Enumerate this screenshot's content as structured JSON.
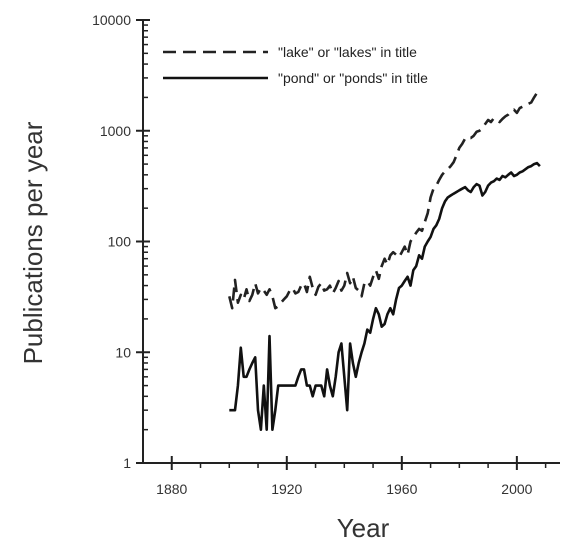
{
  "chart_data": {
    "type": "line",
    "xlabel": "Year",
    "ylabel": "Publications per year",
    "xlim": [
      1870,
      2015
    ],
    "ylim": [
      1,
      10000
    ],
    "yscale": "log",
    "x_ticks": [
      1880,
      1920,
      1960,
      2000
    ],
    "x_tick_labels": [
      "1880",
      "1920",
      "1960",
      "2000"
    ],
    "y_ticks": [
      1,
      10,
      100,
      1000,
      10000
    ],
    "y_tick_labels": [
      "1",
      "10",
      "100",
      "1000",
      "10000"
    ],
    "grid": false,
    "legend_position": "top-left",
    "series": [
      {
        "name": "\"lake\" or \"lakes\" in title",
        "style": "dashed",
        "color": "#222222",
        "x": [
          1900,
          1901,
          1902,
          1903,
          1904,
          1905,
          1906,
          1907,
          1908,
          1909,
          1910,
          1911,
          1912,
          1913,
          1914,
          1915,
          1916,
          1917,
          1918,
          1919,
          1920,
          1921,
          1922,
          1923,
          1924,
          1925,
          1926,
          1927,
          1928,
          1929,
          1930,
          1931,
          1932,
          1933,
          1934,
          1935,
          1936,
          1937,
          1938,
          1939,
          1940,
          1941,
          1942,
          1943,
          1944,
          1945,
          1946,
          1947,
          1948,
          1949,
          1950,
          1951,
          1952,
          1953,
          1954,
          1955,
          1956,
          1957,
          1958,
          1959,
          1960,
          1961,
          1962,
          1963,
          1964,
          1965,
          1966,
          1967,
          1968,
          1969,
          1970,
          1971,
          1972,
          1973,
          1974,
          1975,
          1976,
          1977,
          1978,
          1979,
          1980,
          1981,
          1982,
          1983,
          1984,
          1985,
          1986,
          1987,
          1988,
          1989,
          1990,
          1991,
          1992,
          1993,
          1994,
          1995,
          1996,
          1997,
          1998,
          1999,
          2000,
          2001,
          2002,
          2003,
          2004,
          2005,
          2006,
          2007
        ],
        "y": [
          32,
          25,
          45,
          28,
          33,
          30,
          37,
          29,
          33,
          42,
          34,
          38,
          36,
          33,
          37,
          32,
          25,
          26,
          28,
          30,
          32,
          36,
          38,
          34,
          35,
          40,
          42,
          35,
          48,
          38,
          33,
          39,
          42,
          36,
          37,
          40,
          34,
          38,
          44,
          36,
          40,
          52,
          42,
          48,
          38,
          36,
          32,
          42,
          44,
          40,
          48,
          55,
          46,
          60,
          70,
          62,
          75,
          80,
          76,
          72,
          80,
          90,
          76,
          100,
          110,
          120,
          130,
          125,
          150,
          180,
          250,
          300,
          320,
          360,
          400,
          430,
          450,
          480,
          520,
          600,
          700,
          760,
          850,
          880,
          860,
          900,
          980,
          1000,
          1050,
          1150,
          1250,
          1200,
          1300,
          1250,
          1200,
          1280,
          1350,
          1400,
          1500,
          1550,
          1450,
          1600,
          1650,
          1700,
          1750,
          1800,
          2000,
          2200
        ]
      },
      {
        "name": "\"pond\" or \"ponds\" in title",
        "style": "solid",
        "color": "#111111",
        "x": [
          1900,
          1901,
          1902,
          1903,
          1904,
          1905,
          1906,
          1907,
          1908,
          1909,
          1910,
          1911,
          1912,
          1913,
          1914,
          1915,
          1916,
          1917,
          1918,
          1919,
          1920,
          1921,
          1922,
          1923,
          1924,
          1925,
          1926,
          1927,
          1928,
          1929,
          1930,
          1931,
          1932,
          1933,
          1934,
          1935,
          1936,
          1937,
          1938,
          1939,
          1940,
          1941,
          1942,
          1943,
          1944,
          1945,
          1946,
          1947,
          1948,
          1949,
          1950,
          1951,
          1952,
          1953,
          1954,
          1955,
          1956,
          1957,
          1958,
          1959,
          1960,
          1961,
          1962,
          1963,
          1964,
          1965,
          1966,
          1967,
          1968,
          1969,
          1970,
          1971,
          1972,
          1973,
          1974,
          1975,
          1976,
          1977,
          1978,
          1979,
          1980,
          1981,
          1982,
          1983,
          1984,
          1985,
          1986,
          1987,
          1988,
          1989,
          1990,
          1991,
          1992,
          1993,
          1994,
          1995,
          1996,
          1997,
          1998,
          1999,
          2000,
          2001,
          2002,
          2003,
          2004,
          2005,
          2006,
          2007,
          2008
        ],
        "y": [
          3,
          3,
          3,
          5,
          11,
          6,
          6,
          7,
          8,
          9,
          3,
          2,
          5,
          2,
          14,
          2,
          3,
          5,
          5,
          5,
          5,
          5,
          5,
          5,
          6,
          7,
          7,
          5,
          5,
          4,
          5,
          5,
          5,
          4,
          7,
          5,
          4,
          6,
          10,
          12,
          6,
          3,
          12,
          8,
          6,
          8,
          10,
          12,
          16,
          15,
          20,
          25,
          22,
          17,
          18,
          22,
          25,
          22,
          30,
          38,
          40,
          44,
          48,
          40,
          55,
          60,
          75,
          70,
          90,
          100,
          110,
          130,
          140,
          160,
          200,
          230,
          250,
          260,
          270,
          280,
          290,
          300,
          310,
          290,
          280,
          310,
          330,
          320,
          260,
          280,
          320,
          340,
          350,
          370,
          360,
          390,
          380,
          400,
          420,
          390,
          400,
          420,
          430,
          450,
          470,
          480,
          500,
          510,
          480
        ]
      }
    ]
  }
}
